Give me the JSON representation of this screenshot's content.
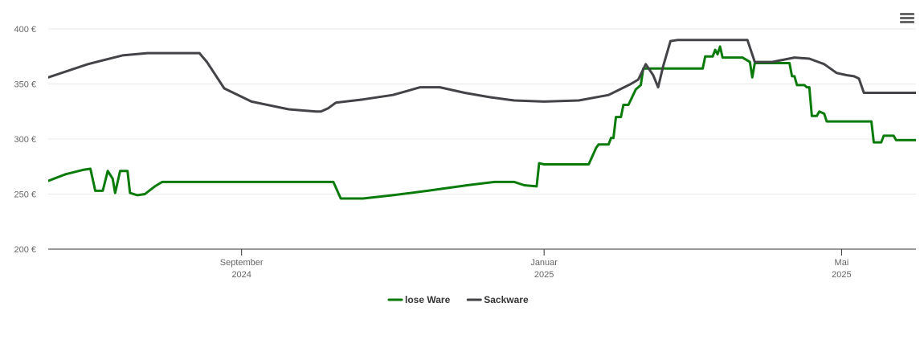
{
  "chart_data": {
    "type": "line",
    "title": "",
    "xlabel": "",
    "ylabel": "",
    "ylim": [
      200,
      400
    ],
    "y_ticks": [
      {
        "value": 200,
        "label": "200 €"
      },
      {
        "value": 250,
        "label": "250 €"
      },
      {
        "value": 300,
        "label": "300 €"
      },
      {
        "value": 350,
        "label": "350 €"
      },
      {
        "value": 400,
        "label": "400 €"
      }
    ],
    "xlim": [
      "2024-06-15",
      "2025-05-31"
    ],
    "x_ticks": [
      {
        "date": "2024-09-01",
        "line1": "September",
        "line2": "2024"
      },
      {
        "date": "2025-01-01",
        "line1": "Januar",
        "line2": "2025"
      },
      {
        "date": "2025-05-01",
        "line1": "Mai",
        "line2": "2025"
      }
    ],
    "grid": true,
    "legend_position": "bottom-center",
    "series": [
      {
        "name": "lose Ware",
        "color": "#0a7b0a",
        "points": [
          [
            "2024-06-15",
            262
          ],
          [
            "2024-06-22",
            268
          ],
          [
            "2024-06-29",
            272
          ],
          [
            "2024-07-02",
            273
          ],
          [
            "2024-07-04",
            253
          ],
          [
            "2024-07-07",
            253
          ],
          [
            "2024-07-09",
            271
          ],
          [
            "2024-07-11",
            264
          ],
          [
            "2024-07-12",
            251
          ],
          [
            "2024-07-14",
            271
          ],
          [
            "2024-07-17",
            271
          ],
          [
            "2024-07-18",
            251
          ],
          [
            "2024-07-21",
            249
          ],
          [
            "2024-07-24",
            250
          ],
          [
            "2024-07-28",
            257
          ],
          [
            "2024-07-31",
            261
          ],
          [
            "2024-08-10",
            261
          ],
          [
            "2024-09-10",
            261
          ],
          [
            "2024-10-02",
            261
          ],
          [
            "2024-10-08",
            261
          ],
          [
            "2024-10-11",
            246
          ],
          [
            "2024-10-20",
            246
          ],
          [
            "2024-11-01",
            249
          ],
          [
            "2024-11-15",
            253
          ],
          [
            "2024-12-01",
            258
          ],
          [
            "2024-12-12",
            261
          ],
          [
            "2024-12-20",
            261
          ],
          [
            "2024-12-24",
            258
          ],
          [
            "2024-12-29",
            257
          ],
          [
            "2024-12-30",
            278
          ],
          [
            "2025-01-01",
            277
          ],
          [
            "2025-01-19",
            277
          ],
          [
            "2025-01-22",
            292
          ],
          [
            "2025-01-23",
            295
          ],
          [
            "2025-01-27",
            295
          ],
          [
            "2025-01-28",
            301
          ],
          [
            "2025-01-29",
            301
          ],
          [
            "2025-01-30",
            320
          ],
          [
            "2025-02-01",
            320
          ],
          [
            "2025-02-02",
            331
          ],
          [
            "2025-02-04",
            331
          ],
          [
            "2025-02-07",
            345
          ],
          [
            "2025-02-09",
            349
          ],
          [
            "2025-02-10",
            364
          ],
          [
            "2025-03-06",
            364
          ],
          [
            "2025-03-07",
            375
          ],
          [
            "2025-03-10",
            375
          ],
          [
            "2025-03-11",
            381
          ],
          [
            "2025-03-12",
            377
          ],
          [
            "2025-03-13",
            384
          ],
          [
            "2025-03-14",
            374
          ],
          [
            "2025-03-22",
            374
          ],
          [
            "2025-03-25",
            370
          ],
          [
            "2025-03-26",
            356
          ],
          [
            "2025-03-27",
            369
          ],
          [
            "2025-04-10",
            369
          ],
          [
            "2025-04-11",
            357
          ],
          [
            "2025-04-12",
            357
          ],
          [
            "2025-04-13",
            349
          ],
          [
            "2025-04-16",
            349
          ],
          [
            "2025-04-17",
            347
          ],
          [
            "2025-04-18",
            347
          ],
          [
            "2025-04-19",
            321
          ],
          [
            "2025-04-21",
            321
          ],
          [
            "2025-04-22",
            325
          ],
          [
            "2025-04-24",
            323
          ],
          [
            "2025-04-25",
            316
          ],
          [
            "2025-05-13",
            316
          ],
          [
            "2025-05-14",
            297
          ],
          [
            "2025-05-17",
            297
          ],
          [
            "2025-05-18",
            303
          ],
          [
            "2025-05-22",
            303
          ],
          [
            "2025-05-23",
            299
          ],
          [
            "2025-06-03",
            299
          ],
          [
            "2025-06-05",
            295
          ],
          [
            "2025-06-09",
            293
          ],
          [
            "2025-06-10",
            292
          ],
          [
            "2025-06-17",
            292
          ],
          [
            "2025-06-18",
            293
          ]
        ]
      },
      {
        "name": "Sackware",
        "color": "#434348",
        "points": [
          [
            "2024-06-15",
            356
          ],
          [
            "2024-07-01",
            368
          ],
          [
            "2024-07-15",
            376
          ],
          [
            "2024-07-25",
            378
          ],
          [
            "2024-08-10",
            378
          ],
          [
            "2024-08-15",
            378
          ],
          [
            "2024-08-18",
            370
          ],
          [
            "2024-08-25",
            346
          ],
          [
            "2024-09-05",
            334
          ],
          [
            "2024-09-20",
            327
          ],
          [
            "2024-10-01",
            325
          ],
          [
            "2024-10-03",
            325
          ],
          [
            "2024-10-06",
            328
          ],
          [
            "2024-10-09",
            333
          ],
          [
            "2024-10-20",
            336
          ],
          [
            "2024-11-01",
            340
          ],
          [
            "2024-11-12",
            347
          ],
          [
            "2024-11-20",
            347
          ],
          [
            "2024-11-30",
            342
          ],
          [
            "2024-12-10",
            338
          ],
          [
            "2024-12-20",
            335
          ],
          [
            "2025-01-01",
            334
          ],
          [
            "2025-01-15",
            335
          ],
          [
            "2025-01-27",
            340
          ],
          [
            "2025-02-05",
            350
          ],
          [
            "2025-02-08",
            354
          ],
          [
            "2025-02-11",
            368
          ],
          [
            "2025-02-14",
            358
          ],
          [
            "2025-02-16",
            347
          ],
          [
            "2025-02-18",
            366
          ],
          [
            "2025-02-21",
            389
          ],
          [
            "2025-02-24",
            390
          ],
          [
            "2025-03-17",
            390
          ],
          [
            "2025-03-24",
            390
          ],
          [
            "2025-03-27",
            370
          ],
          [
            "2025-04-03",
            370
          ],
          [
            "2025-04-12",
            374
          ],
          [
            "2025-04-18",
            373
          ],
          [
            "2025-04-24",
            368
          ],
          [
            "2025-04-29",
            360
          ],
          [
            "2025-05-03",
            358
          ],
          [
            "2025-05-06",
            357
          ],
          [
            "2025-05-08",
            355
          ],
          [
            "2025-05-10",
            342
          ],
          [
            "2025-06-18",
            342
          ]
        ]
      }
    ]
  },
  "menu": {
    "icon": "hamburger-menu-icon"
  }
}
